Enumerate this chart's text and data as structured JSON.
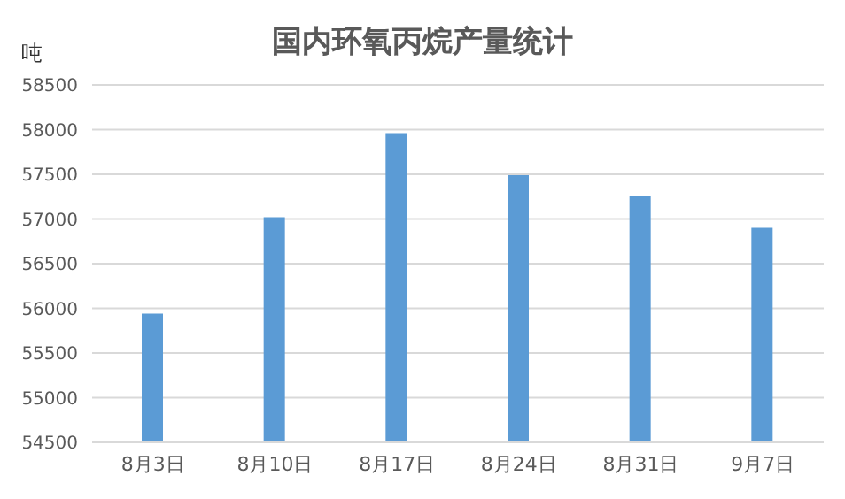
{
  "chart_data": {
    "type": "bar",
    "title": "国内环氧丙烷产量统计",
    "ylabel": "吨",
    "categories": [
      "8月3日",
      "8月10日",
      "8月17日",
      "8月24日",
      "8月31日",
      "9月7日"
    ],
    "values": [
      55940,
      57020,
      57960,
      57490,
      57260,
      56900
    ],
    "color": "#5b9bd5",
    "ylim": [
      54500,
      58500
    ],
    "yticks": [
      54500,
      55000,
      55500,
      56000,
      56500,
      57000,
      57500,
      58000,
      58500
    ],
    "grid": "y"
  }
}
